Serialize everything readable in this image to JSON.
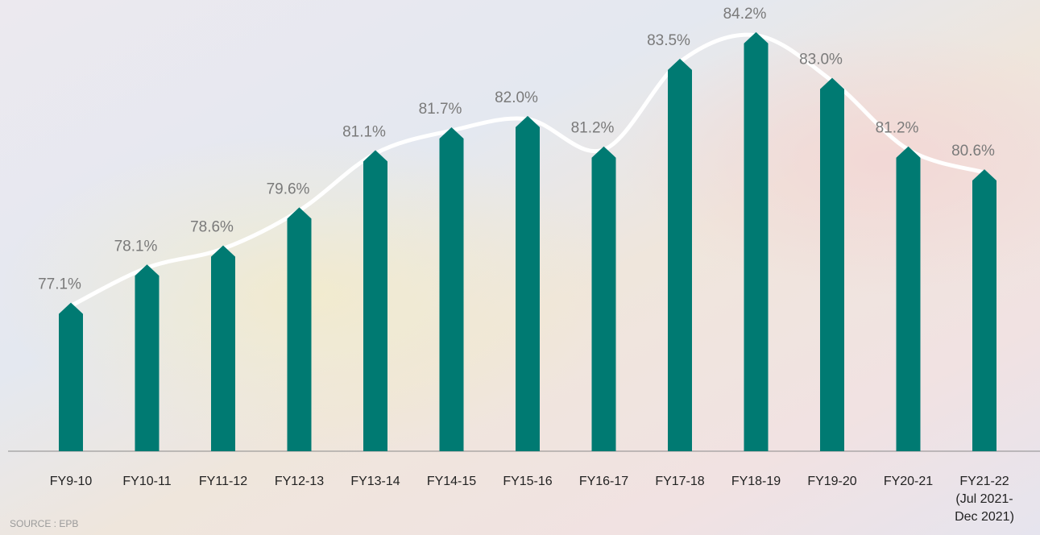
{
  "chart_data": {
    "type": "bar",
    "categories": [
      "FY9-10",
      "FY10-11",
      "FY11-12",
      "FY12-13",
      "FY13-14",
      "FY14-15",
      "FY15-16",
      "FY16-17",
      "FY17-18",
      "FY18-19",
      "FY19-20",
      "FY20-21",
      "FY21-22\n(Jul 2021-\nDec 2021)"
    ],
    "values": [
      77.1,
      78.1,
      78.6,
      79.6,
      81.1,
      81.7,
      82.0,
      81.2,
      83.5,
      84.2,
      83.0,
      81.2,
      80.6
    ],
    "value_labels": [
      "77.1%",
      "78.1%",
      "78.6%",
      "79.6%",
      "81.1%",
      "81.7%",
      "82.0%",
      "81.2%",
      "83.5%",
      "84.2%",
      "83.0%",
      "81.2%",
      "80.6%"
    ],
    "color": "#007a72",
    "line_color": "#ffffff",
    "ylim": [
      73.2,
      85
    ],
    "source": "SOURCE : EPB"
  }
}
